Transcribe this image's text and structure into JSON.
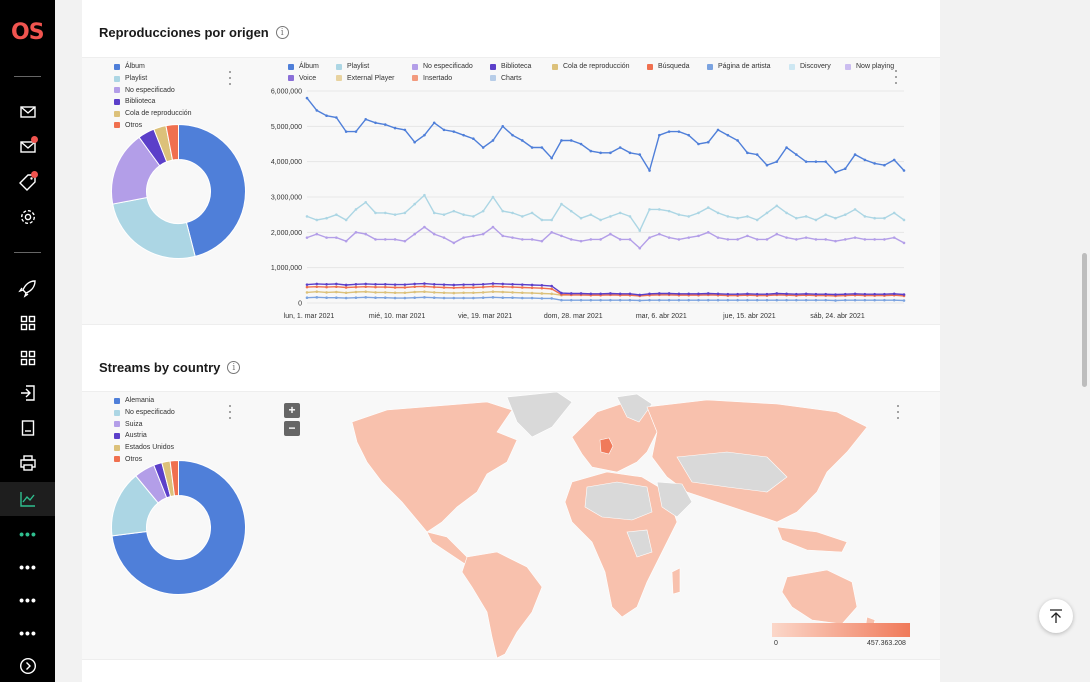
{
  "sidebar": {
    "logo": "OS",
    "items": [
      {
        "icon": "mail-icon"
      },
      {
        "icon": "mail-notification-icon"
      },
      {
        "icon": "tag-notification-icon"
      },
      {
        "icon": "gear-icon"
      },
      {
        "icon": "rocket-icon"
      },
      {
        "icon": "grid-icon"
      },
      {
        "icon": "grid-icon"
      },
      {
        "icon": "sign-in-icon"
      },
      {
        "icon": "document-icon"
      },
      {
        "icon": "printer-icon"
      },
      {
        "icon": "line-chart-icon"
      },
      {
        "icon": "more-icon"
      },
      {
        "icon": "more-icon"
      },
      {
        "icon": "more-icon"
      },
      {
        "icon": "more-icon"
      },
      {
        "icon": "chevron-right-circle-icon"
      }
    ],
    "active_color": "#2fbf8f"
  },
  "section1": {
    "title": "Reproducciones por origen",
    "donut_legend": [
      {
        "label": "Álbum",
        "color": "#4f7fd9"
      },
      {
        "label": "Playlist",
        "color": "#acd6e4"
      },
      {
        "label": "No especificado",
        "color": "#b39ee8"
      },
      {
        "label": "Biblioteca",
        "color": "#5b3fc9"
      },
      {
        "label": "Cola de reproducción",
        "color": "#dcc17a"
      },
      {
        "label": "Otros",
        "color": "#f0704f"
      }
    ],
    "line_legend": [
      {
        "label": "Álbum",
        "color": "#4f7fd9"
      },
      {
        "label": "Playlist",
        "color": "#acd6e4"
      },
      {
        "label": "No especificado",
        "color": "#b39ee8"
      },
      {
        "label": "Biblioteca",
        "color": "#5b3fc9"
      },
      {
        "label": "Cola de reproducción",
        "color": "#dcc17a"
      },
      {
        "label": "Búsqueda",
        "color": "#f0704f"
      },
      {
        "label": "Página de artista",
        "color": "#7ba3e0"
      },
      {
        "label": "Discovery",
        "color": "#cde7f2"
      },
      {
        "label": "Now playing",
        "color": "#cbbdf0"
      },
      {
        "label": "Voice",
        "color": "#8a6fd8"
      },
      {
        "label": "External Player",
        "color": "#e8d3a0"
      },
      {
        "label": "Insertado",
        "color": "#f29a7e"
      },
      {
        "label": "Charts",
        "color": "#b7cde8"
      }
    ]
  },
  "section2": {
    "title": "Streams by country",
    "donut_legend": [
      {
        "label": "Alemania",
        "color": "#4f7fd9"
      },
      {
        "label": "No especificado",
        "color": "#acd6e4"
      },
      {
        "label": "Suiza",
        "color": "#b39ee8"
      },
      {
        "label": "Austria",
        "color": "#5b3fc9"
      },
      {
        "label": "Estados Unidos",
        "color": "#dcc17a"
      },
      {
        "label": "Otros",
        "color": "#f0704f"
      }
    ],
    "zoom_in": "+",
    "zoom_out": "−",
    "scale_min": "0",
    "scale_max": "457.363.208"
  },
  "chart_data": [
    {
      "type": "pie",
      "labels": [
        "Álbum",
        "Playlist",
        "No especificado",
        "Biblioteca",
        "Cola de reproducción",
        "Otros"
      ],
      "values": [
        46,
        26,
        18,
        4,
        3,
        3
      ]
    },
    {
      "type": "line",
      "x_ticks": [
        "lun, 1. mar 2021",
        "mié, 10. mar 2021",
        "vie, 19. mar 2021",
        "dom, 28. mar 2021",
        "mar, 6. abr 2021",
        "jue, 15. abr 2021",
        "sáb, 24. abr 2021"
      ],
      "y_ticks": [
        "6,000,000",
        "5,000,000",
        "4,000,000",
        "3,000,000",
        "2,000,000",
        "1,000,000",
        "0"
      ],
      "ylim": [
        0,
        6000000
      ],
      "grid": true,
      "legend": "top",
      "series": [
        {
          "name": "Álbum",
          "color": "#4f7fd9",
          "values": [
            5800000,
            5450000,
            5300000,
            5250000,
            4850000,
            4850000,
            5200000,
            5100000,
            5050000,
            4950000,
            4900000,
            4550000,
            4750000,
            5100000,
            4900000,
            4850000,
            4750000,
            4650000,
            4400000,
            4600000,
            5000000,
            4750000,
            4600000,
            4400000,
            4400000,
            4100000,
            4600000,
            4600000,
            4500000,
            4300000,
            4250000,
            4250000,
            4400000,
            4250000,
            4200000,
            3750000,
            4750000,
            4850000,
            4850000,
            4750000,
            4500000,
            4550000,
            4900000,
            4750000,
            4600000,
            4250000,
            4200000,
            3900000,
            4000000,
            4400000,
            4200000,
            4000000,
            4000000,
            4000000,
            3700000,
            3800000,
            4200000,
            4050000,
            3950000,
            3900000,
            4050000,
            3750000
          ]
        },
        {
          "name": "Playlist",
          "color": "#acd6e4",
          "values": [
            2450000,
            2350000,
            2400000,
            2500000,
            2350000,
            2650000,
            2850000,
            2550000,
            2550000,
            2500000,
            2550000,
            2800000,
            3050000,
            2550000,
            2500000,
            2600000,
            2500000,
            2450000,
            2600000,
            3000000,
            2600000,
            2550000,
            2450000,
            2550000,
            2350000,
            2350000,
            2800000,
            2600000,
            2400000,
            2500000,
            2350000,
            2450000,
            2550000,
            2450000,
            2050000,
            2650000,
            2650000,
            2600000,
            2500000,
            2450000,
            2550000,
            2700000,
            2550000,
            2450000,
            2400000,
            2450000,
            2350000,
            2550000,
            2750000,
            2550000,
            2400000,
            2450000,
            2350000,
            2500000,
            2400000,
            2500000,
            2650000,
            2450000,
            2400000,
            2400000,
            2550000,
            2350000
          ]
        },
        {
          "name": "No especificado",
          "color": "#b39ee8",
          "values": [
            1850000,
            1950000,
            1850000,
            1850000,
            1750000,
            2000000,
            1950000,
            1800000,
            1800000,
            1800000,
            1750000,
            1950000,
            2150000,
            1950000,
            1850000,
            1700000,
            1850000,
            1900000,
            1950000,
            2150000,
            1900000,
            1850000,
            1800000,
            1800000,
            1750000,
            2000000,
            1900000,
            1800000,
            1750000,
            1800000,
            1800000,
            1950000,
            1800000,
            1800000,
            1550000,
            1850000,
            1950000,
            1850000,
            1800000,
            1850000,
            1900000,
            2000000,
            1850000,
            1800000,
            1800000,
            1900000,
            1800000,
            1800000,
            1950000,
            1850000,
            1800000,
            1850000,
            1800000,
            1800000,
            1750000,
            1800000,
            1850000,
            1800000,
            1800000,
            1800000,
            1850000,
            1700000
          ]
        },
        {
          "name": "Biblioteca",
          "color": "#5b3fc9",
          "values": [
            520000,
            540000,
            530000,
            540000,
            510000,
            530000,
            540000,
            530000,
            530000,
            520000,
            520000,
            540000,
            550000,
            530000,
            520000,
            510000,
            520000,
            520000,
            530000,
            550000,
            540000,
            530000,
            520000,
            510000,
            500000,
            480000,
            280000,
            270000,
            270000,
            260000,
            260000,
            270000,
            260000,
            260000,
            230000,
            260000,
            270000,
            270000,
            260000,
            260000,
            260000,
            270000,
            260000,
            250000,
            250000,
            260000,
            250000,
            250000,
            270000,
            260000,
            250000,
            260000,
            250000,
            250000,
            240000,
            250000,
            260000,
            250000,
            250000,
            250000,
            260000,
            240000
          ]
        },
        {
          "name": "Búsqueda",
          "color": "#f0704f",
          "values": [
            450000,
            460000,
            450000,
            460000,
            440000,
            450000,
            460000,
            450000,
            450000,
            440000,
            440000,
            460000,
            470000,
            450000,
            440000,
            430000,
            440000,
            440000,
            450000,
            470000,
            460000,
            450000,
            440000,
            430000,
            420000,
            400000,
            240000,
            230000,
            230000,
            220000,
            220000,
            230000,
            220000,
            220000,
            200000,
            220000,
            230000,
            230000,
            220000,
            220000,
            220000,
            230000,
            220000,
            210000,
            210000,
            220000,
            210000,
            210000,
            230000,
            220000,
            210000,
            220000,
            210000,
            210000,
            200000,
            210000,
            220000,
            210000,
            210000,
            210000,
            220000,
            200000
          ]
        },
        {
          "name": "Cola de reproducción",
          "color": "#dcc17a",
          "values": [
            300000,
            320000,
            300000,
            310000,
            290000,
            310000,
            320000,
            300000,
            300000,
            290000,
            290000,
            310000,
            320000,
            300000,
            290000,
            280000,
            290000,
            290000,
            300000,
            320000,
            310000,
            300000,
            290000,
            280000,
            270000,
            260000,
            220000,
            230000,
            230000,
            230000,
            230000,
            240000,
            230000,
            230000,
            210000,
            250000,
            260000,
            260000,
            250000,
            250000,
            250000,
            260000,
            250000,
            240000,
            240000,
            250000,
            240000,
            240000,
            260000,
            250000,
            240000,
            250000,
            240000,
            240000,
            230000,
            240000,
            250000,
            240000,
            240000,
            240000,
            250000,
            230000
          ]
        },
        {
          "name": "Página de artista",
          "color": "#7ba3e0",
          "values": [
            150000,
            160000,
            150000,
            150000,
            140000,
            150000,
            160000,
            150000,
            150000,
            140000,
            140000,
            150000,
            160000,
            150000,
            140000,
            140000,
            140000,
            140000,
            150000,
            160000,
            150000,
            150000,
            140000,
            140000,
            130000,
            130000,
            80000,
            80000,
            80000,
            80000,
            80000,
            80000,
            80000,
            80000,
            70000,
            80000,
            80000,
            80000,
            80000,
            80000,
            80000,
            80000,
            80000,
            80000,
            80000,
            80000,
            80000,
            80000,
            80000,
            80000,
            80000,
            80000,
            80000,
            80000,
            70000,
            80000,
            80000,
            80000,
            80000,
            80000,
            80000,
            70000
          ]
        }
      ]
    },
    {
      "type": "pie",
      "labels": [
        "Alemania",
        "No especificado",
        "Suiza",
        "Austria",
        "Estados Unidos",
        "Otros"
      ],
      "values": [
        73,
        16,
        5,
        2,
        2,
        2
      ]
    }
  ]
}
